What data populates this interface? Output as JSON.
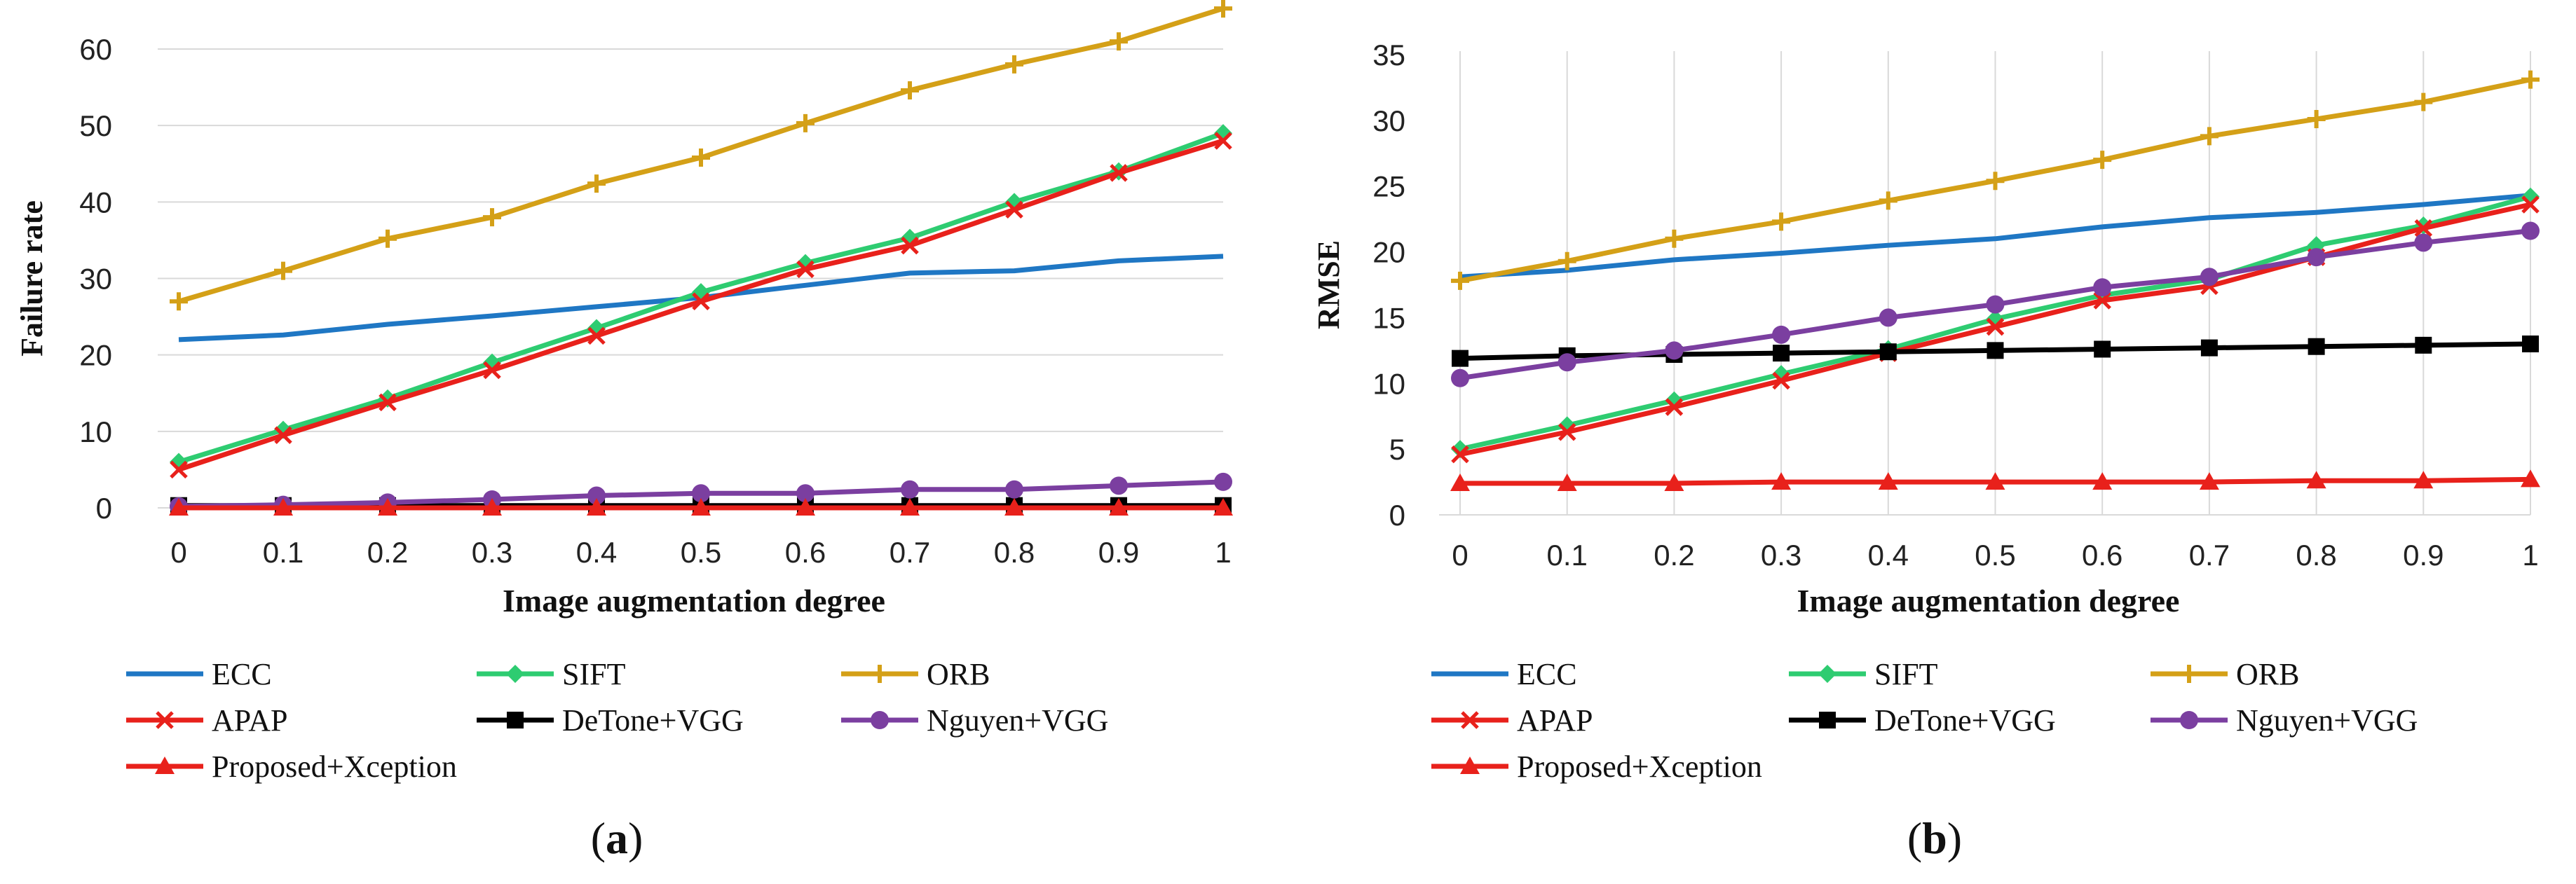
{
  "chart_data": [
    {
      "panel": "a",
      "caption_label": "a",
      "type": "line",
      "xlabel": "Image augmentation degree",
      "ylabel": "Failure rate",
      "x": [
        0,
        0.1,
        0.2,
        0.3,
        0.4,
        0.5,
        0.6,
        0.7,
        0.8,
        0.9,
        1
      ],
      "x_tick_labels": [
        "0",
        "0.1",
        "0.2",
        "0.3",
        "0.4",
        "0.5",
        "0.6",
        "0.7",
        "0.8",
        "0.9",
        "1"
      ],
      "ylim": [
        0,
        60
      ],
      "y_ticks": [
        0,
        10,
        20,
        30,
        40,
        50,
        60
      ],
      "y_tick_labels": [
        "0",
        "10",
        "20",
        "30",
        "40",
        "50",
        "60"
      ],
      "grid": "horizontal",
      "legend_position": "bottom",
      "series": [
        {
          "name": "ECC",
          "color": "#1f77c4",
          "marker": "none",
          "values": [
            22,
            22.6,
            24,
            25.1,
            26.3,
            27.5,
            29.1,
            30.7,
            31,
            32.3,
            32.9
          ]
        },
        {
          "name": "SIFT",
          "color": "#2ecc71",
          "marker": "diamond",
          "values": [
            6,
            10.2,
            14.3,
            19,
            23.5,
            28.2,
            32,
            35.3,
            40,
            44,
            49
          ]
        },
        {
          "name": "ORB",
          "color": "#d4a017",
          "marker": "plus",
          "values": [
            27,
            31,
            35.2,
            38,
            42.4,
            45.8,
            50.3,
            54.6,
            58,
            61,
            65.3
          ]
        },
        {
          "name": "APAP",
          "color": "#e8211b",
          "marker": "x",
          "values": [
            5,
            9.5,
            13.8,
            18,
            22.5,
            27,
            31.2,
            34.3,
            39,
            43.8,
            48
          ]
        },
        {
          "name": "DeTone+VGG",
          "color": "#000000",
          "marker": "square",
          "values": [
            0.3,
            0.3,
            0.3,
            0.3,
            0.3,
            0.3,
            0.3,
            0.3,
            0.3,
            0.3,
            0.3
          ]
        },
        {
          "name": "Nguyen+VGG",
          "color": "#7b3fa0",
          "marker": "circle",
          "values": [
            0.2,
            0.4,
            0.7,
            1.1,
            1.6,
            1.9,
            1.9,
            2.4,
            2.4,
            2.9,
            3.4
          ]
        },
        {
          "name": "Proposed+Xception",
          "color": "#e8211b",
          "marker": "triangle",
          "values": [
            0,
            0,
            0,
            0,
            0,
            0,
            0,
            0,
            0,
            0,
            0
          ]
        }
      ]
    },
    {
      "panel": "b",
      "caption_label": "b",
      "type": "line",
      "xlabel": "Image augmentation degree",
      "ylabel": "RMSE",
      "x": [
        0,
        0.1,
        0.2,
        0.3,
        0.4,
        0.5,
        0.6,
        0.7,
        0.8,
        0.9,
        1
      ],
      "x_tick_labels": [
        "0",
        "0.1",
        "0.2",
        "0.3",
        "0.4",
        "0.5",
        "0.6",
        "0.7",
        "0.8",
        "0.9",
        "1"
      ],
      "ylim": [
        0,
        35
      ],
      "y_ticks": [
        0,
        5,
        10,
        15,
        20,
        25,
        30,
        35
      ],
      "y_tick_labels": [
        "0",
        "5",
        "10",
        "15",
        "20",
        "25",
        "30",
        "35"
      ],
      "grid": "vertical",
      "legend_position": "bottom",
      "series": [
        {
          "name": "ECC",
          "color": "#1f77c4",
          "marker": "none",
          "values": [
            18.1,
            18.6,
            19.4,
            19.9,
            20.5,
            21,
            21.9,
            22.6,
            23,
            23.6,
            24.3
          ]
        },
        {
          "name": "SIFT",
          "color": "#2ecc71",
          "marker": "diamond",
          "values": [
            5,
            6.8,
            8.7,
            10.7,
            12.6,
            14.9,
            16.7,
            17.9,
            20.5,
            22,
            24.2
          ]
        },
        {
          "name": "ORB",
          "color": "#d4a017",
          "marker": "plus",
          "values": [
            17.8,
            19.3,
            21,
            22.3,
            23.9,
            25.4,
            27,
            28.8,
            30.1,
            31.4,
            33.1
          ]
        },
        {
          "name": "APAP",
          "color": "#e8211b",
          "marker": "x",
          "values": [
            4.6,
            6.3,
            8.2,
            10.2,
            12.3,
            14.3,
            16.3,
            17.4,
            19.6,
            21.8,
            23.6
          ]
        },
        {
          "name": "DeTone+VGG",
          "color": "#000000",
          "marker": "square",
          "values": [
            11.9,
            12.1,
            12.2,
            12.3,
            12.4,
            12.5,
            12.6,
            12.7,
            12.8,
            12.9,
            13
          ]
        },
        {
          "name": "Nguyen+VGG",
          "color": "#7b3fa0",
          "marker": "circle",
          "values": [
            10.4,
            11.6,
            12.5,
            13.7,
            15,
            16,
            17.3,
            18.1,
            19.6,
            20.7,
            21.6
          ]
        },
        {
          "name": "Proposed+Xception",
          "color": "#e8211b",
          "marker": "triangle",
          "values": [
            2.4,
            2.4,
            2.4,
            2.5,
            2.5,
            2.5,
            2.5,
            2.5,
            2.6,
            2.6,
            2.7
          ]
        }
      ]
    }
  ]
}
